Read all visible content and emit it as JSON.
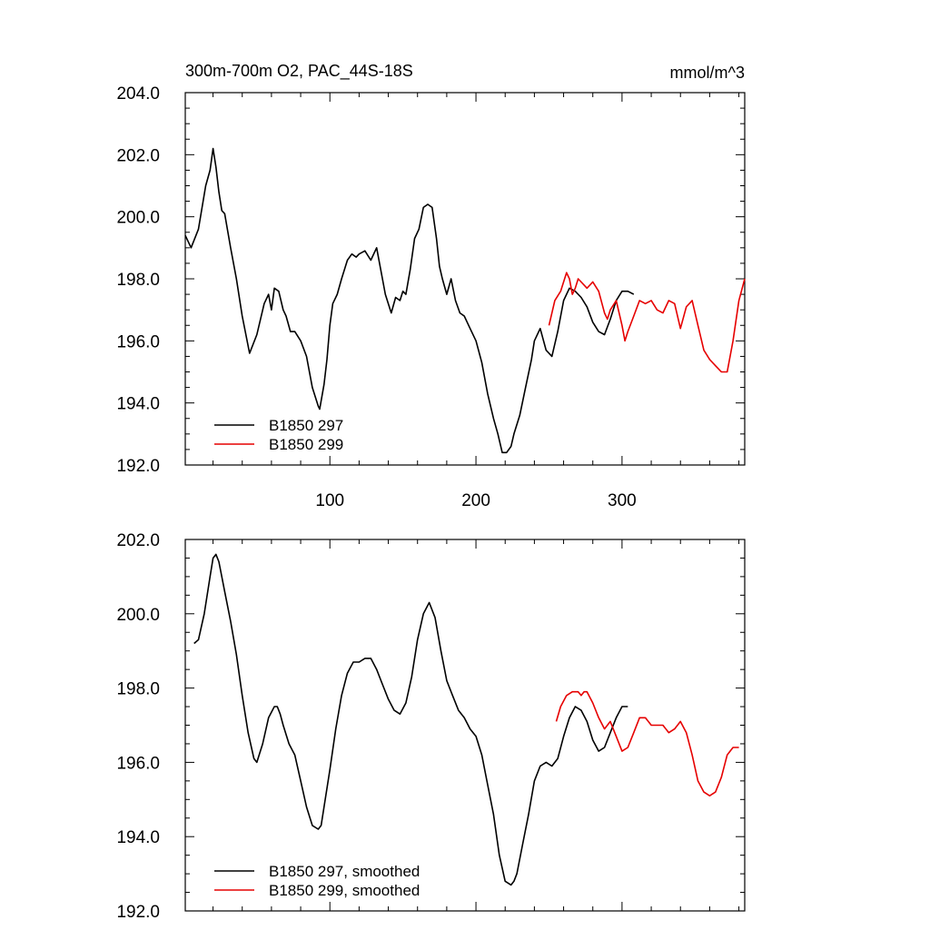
{
  "top_panel": {
    "title_left": "300m-700m O2, PAC_44S-18S",
    "title_right": "mmol/m^3",
    "y_tick_labels": [
      "204.0",
      "202.0",
      "200.0",
      "198.0",
      "196.0",
      "194.0",
      "192.0"
    ],
    "x_tick_labels": [
      "100",
      "200",
      "300"
    ],
    "legend": [
      "B1850 297",
      "B1850 299"
    ]
  },
  "bottom_panel": {
    "y_tick_labels": [
      "202.0",
      "200.0",
      "198.0",
      "196.0",
      "194.0",
      "192.0"
    ],
    "legend": [
      "B1850 297, smoothed",
      "B1850 299, smoothed"
    ]
  },
  "chart_data": [
    {
      "type": "line",
      "title": "300m-700m O2, PAC_44S-18S",
      "units": "mmol/m^3",
      "xlim": [
        1,
        384
      ],
      "ylim": [
        192,
        204
      ],
      "x_ticks": [
        100,
        200,
        300
      ],
      "y_ticks": [
        192,
        194,
        196,
        198,
        200,
        202,
        204
      ],
      "grid": false,
      "legend_position": "bottom-left",
      "series": [
        {
          "name": "B1850 297",
          "color": "#000000",
          "x": [
            1,
            5,
            10,
            15,
            18,
            20,
            22,
            24,
            26,
            28,
            32,
            36,
            40,
            45,
            50,
            55,
            58,
            60,
            62,
            65,
            68,
            70,
            73,
            76,
            80,
            84,
            86,
            88,
            90,
            92,
            93,
            96,
            98,
            100,
            102,
            105,
            108,
            112,
            115,
            118,
            120,
            124,
            128,
            132,
            136,
            138,
            142,
            145,
            148,
            150,
            152,
            155,
            158,
            161,
            164,
            167,
            170,
            173,
            175,
            177,
            180,
            183,
            186,
            189,
            192,
            196,
            200,
            204,
            208,
            212,
            215,
            218,
            221,
            224,
            226,
            230,
            234,
            238,
            240,
            244,
            248,
            252,
            256,
            260,
            264,
            268,
            272,
            276,
            280,
            284,
            288,
            292,
            296,
            300,
            304,
            308
          ],
          "y": [
            199.4,
            199.0,
            199.6,
            201.0,
            201.5,
            202.2,
            201.6,
            200.8,
            200.2,
            200.1,
            199.0,
            198.0,
            196.8,
            195.6,
            196.2,
            197.2,
            197.5,
            197.0,
            197.7,
            197.6,
            197.0,
            196.8,
            196.3,
            196.3,
            196.0,
            195.5,
            195.0,
            194.5,
            194.2,
            193.9,
            193.8,
            194.6,
            195.4,
            196.5,
            197.2,
            197.5,
            198.0,
            198.6,
            198.8,
            198.7,
            198.8,
            198.9,
            198.6,
            199.0,
            198.0,
            197.5,
            196.9,
            197.4,
            197.3,
            197.6,
            197.5,
            198.3,
            199.3,
            199.6,
            200.3,
            200.4,
            200.3,
            199.3,
            198.4,
            198.0,
            197.5,
            198.0,
            197.3,
            196.9,
            196.8,
            196.4,
            196.0,
            195.3,
            194.3,
            193.5,
            193.0,
            192.4,
            192.4,
            192.6,
            193.0,
            193.6,
            194.5,
            195.4,
            196.0,
            196.4,
            195.7,
            195.5,
            196.3,
            197.3,
            197.7,
            197.6,
            197.4,
            197.1,
            196.6,
            196.3,
            196.2,
            196.7,
            197.3,
            197.6,
            197.6,
            197.5
          ]
        },
        {
          "name": "B1850 299",
          "color": "#e60000",
          "x": [
            250,
            254,
            258,
            262,
            264,
            266,
            268,
            270,
            272,
            276,
            280,
            284,
            288,
            290,
            292,
            296,
            300,
            302,
            304,
            308,
            312,
            316,
            320,
            324,
            328,
            332,
            336,
            340,
            344,
            348,
            352,
            356,
            360,
            364,
            368,
            372,
            376,
            380,
            384
          ],
          "y": [
            196.5,
            197.3,
            197.6,
            198.2,
            198.0,
            197.5,
            197.7,
            198.0,
            197.9,
            197.7,
            197.9,
            197.6,
            196.9,
            196.7,
            197.0,
            197.3,
            196.5,
            196.0,
            196.3,
            196.8,
            197.3,
            197.2,
            197.3,
            197.0,
            196.9,
            197.3,
            197.2,
            196.4,
            197.1,
            197.3,
            196.5,
            195.7,
            195.4,
            195.2,
            195.0,
            195.0,
            196.0,
            197.3,
            198.0
          ]
        }
      ]
    },
    {
      "type": "line",
      "xlim": [
        1,
        384
      ],
      "ylim": [
        192,
        202
      ],
      "x_ticks": [
        100,
        200,
        300
      ],
      "y_ticks": [
        192,
        194,
        196,
        198,
        200,
        202
      ],
      "grid": false,
      "legend_position": "bottom-left",
      "series": [
        {
          "name": "B1850 297, smoothed",
          "color": "#000000",
          "x": [
            7,
            10,
            14,
            18,
            20,
            22,
            24,
            28,
            32,
            36,
            40,
            44,
            48,
            50,
            54,
            58,
            62,
            64,
            66,
            68,
            72,
            76,
            80,
            84,
            88,
            92,
            94,
            96,
            100,
            104,
            108,
            112,
            116,
            120,
            124,
            128,
            132,
            136,
            140,
            144,
            148,
            152,
            156,
            160,
            164,
            168,
            172,
            176,
            180,
            184,
            188,
            192,
            196,
            200,
            204,
            208,
            212,
            216,
            220,
            224,
            226,
            228,
            232,
            236,
            240,
            244,
            248,
            252,
            256,
            260,
            264,
            268,
            272,
            276,
            280,
            284,
            288,
            292,
            296,
            300,
            304
          ],
          "y": [
            199.2,
            199.3,
            200.0,
            201.0,
            201.5,
            201.6,
            201.4,
            200.6,
            199.8,
            198.9,
            197.8,
            196.8,
            196.1,
            196.0,
            196.5,
            197.2,
            197.5,
            197.5,
            197.3,
            197.0,
            196.5,
            196.2,
            195.5,
            194.8,
            194.3,
            194.2,
            194.3,
            194.8,
            195.8,
            196.9,
            197.8,
            198.4,
            198.7,
            198.7,
            198.8,
            198.8,
            198.5,
            198.1,
            197.7,
            197.4,
            197.3,
            197.6,
            198.3,
            199.3,
            200.0,
            200.3,
            199.9,
            199.0,
            198.2,
            197.8,
            197.4,
            197.2,
            196.9,
            196.7,
            196.2,
            195.4,
            194.6,
            193.5,
            192.8,
            192.7,
            192.8,
            193.0,
            193.8,
            194.6,
            195.5,
            195.9,
            196.0,
            195.9,
            196.1,
            196.7,
            197.2,
            197.5,
            197.4,
            197.1,
            196.6,
            196.3,
            196.4,
            196.8,
            197.2,
            197.5,
            197.5
          ]
        },
        {
          "name": "B1850 299, smoothed",
          "color": "#e60000",
          "x": [
            255,
            258,
            262,
            266,
            270,
            272,
            274,
            276,
            280,
            284,
            288,
            292,
            296,
            300,
            304,
            308,
            312,
            316,
            320,
            324,
            328,
            332,
            336,
            340,
            344,
            348,
            352,
            356,
            360,
            364,
            368,
            372,
            376,
            380
          ],
          "y": [
            197.1,
            197.5,
            197.8,
            197.9,
            197.9,
            197.8,
            197.9,
            197.9,
            197.6,
            197.2,
            196.9,
            197.1,
            196.7,
            196.3,
            196.4,
            196.8,
            197.2,
            197.2,
            197.0,
            197.0,
            197.0,
            196.8,
            196.9,
            197.1,
            196.8,
            196.2,
            195.5,
            195.2,
            195.1,
            195.2,
            195.6,
            196.2,
            196.4,
            196.4
          ]
        }
      ]
    }
  ]
}
